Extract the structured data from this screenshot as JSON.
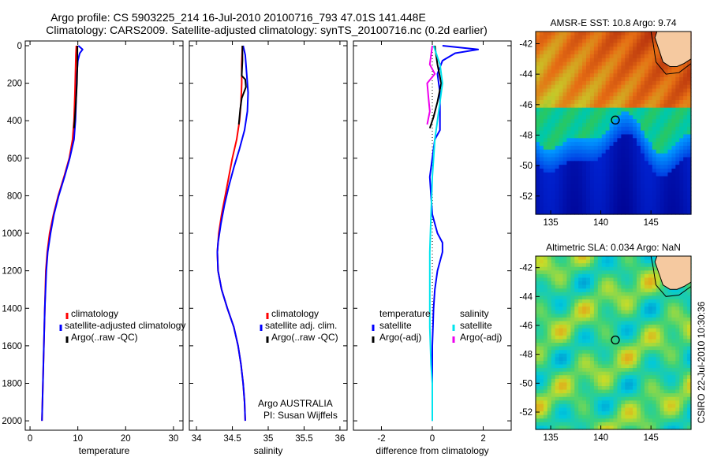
{
  "title": {
    "line1": "Argo profile: CS 5903225_214 16-Jul-2010 20100716_793 47.01S 141.448E",
    "line2": "Climatology: CARS2009. Satellite-adjusted climatology: synTS_20100716.nc (0.2d earlier)"
  },
  "depth_ticks": [
    "0",
    "200",
    "400",
    "600",
    "800",
    "1000",
    "1200",
    "1400",
    "1600",
    "1800",
    "2000"
  ],
  "colors": {
    "climatology": "#ff0000",
    "satellite": "#0000ff",
    "argo": "#000000",
    "salinity_satellite": "#00e5ee",
    "salinity_argo": "#ee00ee"
  },
  "chart_data": [
    {
      "type": "line",
      "xlabel": "temperature",
      "ylabel": "",
      "xlim": [
        -1,
        32
      ],
      "ylim": [
        2050,
        0
      ],
      "xticks": [
        "0",
        "10",
        "20",
        "30"
      ],
      "legend": {
        "position": "lower-right",
        "labels": [
          "climatology",
          "satellite-adjusted climatology",
          "Argo(..raw -QC)"
        ]
      },
      "series": [
        {
          "name": "climatology",
          "color": "#ff0000",
          "points": [
            [
              9.7,
              0
            ],
            [
              9.6,
              50
            ],
            [
              9.5,
              150
            ],
            [
              9.4,
              250
            ],
            [
              9.2,
              400
            ],
            [
              8.9,
              500
            ],
            [
              8.2,
              600
            ],
            [
              7.1,
              700
            ],
            [
              5.9,
              800
            ],
            [
              4.9,
              900
            ],
            [
              4.1,
              1000
            ],
            [
              3.6,
              1100
            ],
            [
              3.3,
              1200
            ],
            [
              3.1,
              1400
            ],
            [
              2.9,
              1600
            ],
            [
              2.7,
              1800
            ],
            [
              2.5,
              2000
            ]
          ]
        },
        {
          "name": "satellite-adjusted climatology",
          "color": "#0000ff",
          "points": [
            [
              10.1,
              0
            ],
            [
              11.0,
              20
            ],
            [
              10.4,
              40
            ],
            [
              10.0,
              80
            ],
            [
              9.8,
              150
            ],
            [
              9.7,
              250
            ],
            [
              9.5,
              400
            ],
            [
              9.2,
              500
            ],
            [
              8.3,
              600
            ],
            [
              7.2,
              700
            ],
            [
              6.0,
              800
            ],
            [
              5.0,
              900
            ],
            [
              4.3,
              1000
            ],
            [
              3.7,
              1100
            ],
            [
              3.4,
              1200
            ],
            [
              3.1,
              1400
            ],
            [
              2.9,
              1600
            ],
            [
              2.7,
              1800
            ],
            [
              2.5,
              2000
            ]
          ]
        },
        {
          "name": "Argo(..raw -QC)",
          "color": "#000000",
          "points": [
            [
              9.9,
              0
            ],
            [
              9.9,
              100
            ],
            [
              9.8,
              200
            ],
            [
              9.6,
              300
            ],
            [
              9.4,
              380
            ],
            [
              9.2,
              440
            ]
          ]
        }
      ]
    },
    {
      "type": "line",
      "xlabel": "salinity",
      "ylabel": "",
      "xlim": [
        33.9,
        36.1
      ],
      "ylim": [
        2050,
        0
      ],
      "xticks": [
        "34",
        "34.5",
        "35",
        "35.5",
        "36"
      ],
      "legend": {
        "position": "lower-right",
        "labels": [
          "climatology",
          "satellite adj. clim.",
          "Argo(..raw -QC)"
        ]
      },
      "series": [
        {
          "name": "climatology",
          "color": "#ff0000",
          "points": [
            [
              34.64,
              0
            ],
            [
              34.63,
              100
            ],
            [
              34.63,
              200
            ],
            [
              34.62,
              300
            ],
            [
              34.6,
              400
            ],
            [
              34.56,
              500
            ],
            [
              34.5,
              600
            ],
            [
              34.45,
              700
            ],
            [
              34.4,
              800
            ],
            [
              34.35,
              900
            ],
            [
              34.31,
              1000
            ],
            [
              34.29,
              1100
            ],
            [
              34.3,
              1200
            ],
            [
              34.35,
              1300
            ],
            [
              34.43,
              1400
            ],
            [
              34.52,
              1500
            ],
            [
              34.58,
              1600
            ],
            [
              34.62,
              1700
            ],
            [
              34.65,
              1800
            ],
            [
              34.67,
              1900
            ],
            [
              34.68,
              2000
            ]
          ]
        },
        {
          "name": "satellite adj. clim.",
          "color": "#0000ff",
          "points": [
            [
              34.65,
              0
            ],
            [
              34.68,
              50
            ],
            [
              34.7,
              150
            ],
            [
              34.72,
              250
            ],
            [
              34.71,
              350
            ],
            [
              34.67,
              450
            ],
            [
              34.6,
              550
            ],
            [
              34.52,
              650
            ],
            [
              34.45,
              750
            ],
            [
              34.39,
              850
            ],
            [
              34.34,
              950
            ],
            [
              34.3,
              1050
            ],
            [
              34.29,
              1100
            ],
            [
              34.3,
              1200
            ],
            [
              34.35,
              1300
            ],
            [
              34.43,
              1400
            ],
            [
              34.52,
              1500
            ],
            [
              34.58,
              1600
            ],
            [
              34.62,
              1700
            ],
            [
              34.65,
              1800
            ],
            [
              34.67,
              1900
            ],
            [
              34.68,
              2000
            ]
          ]
        },
        {
          "name": "Argo(..raw -QC)",
          "color": "#000000",
          "points": [
            [
              34.64,
              0
            ],
            [
              34.64,
              80
            ],
            [
              34.63,
              160
            ],
            [
              34.68,
              180
            ],
            [
              34.69,
              220
            ],
            [
              34.63,
              280
            ],
            [
              34.61,
              340
            ],
            [
              34.59,
              420
            ]
          ]
        }
      ]
    },
    {
      "type": "line",
      "xlabel": "difference from climatology",
      "ylabel": "",
      "xlim": [
        -3.1,
        3.1
      ],
      "ylim": [
        2050,
        0
      ],
      "xticks": [
        "-2",
        "0",
        "2"
      ],
      "legend": {
        "position": "lower-center",
        "headers": [
          "temperature",
          "salinity"
        ],
        "labels": [
          "satellite",
          "Argo(-adj)",
          "satellite",
          "Argo(-adj)"
        ]
      },
      "series": [
        {
          "name": "temperature satellite",
          "color": "#0000ff",
          "points": [
            [
              0.4,
              0
            ],
            [
              1.8,
              20
            ],
            [
              0.9,
              40
            ],
            [
              0.4,
              80
            ],
            [
              0.2,
              150
            ],
            [
              0.3,
              250
            ],
            [
              0.3,
              350
            ],
            [
              0.3,
              400
            ],
            [
              0.3,
              450
            ],
            [
              0.1,
              500
            ],
            [
              0.0,
              600
            ],
            [
              -0.1,
              700
            ],
            [
              -0.05,
              800
            ],
            [
              0.0,
              900
            ],
            [
              0.2,
              1000
            ],
            [
              0.4,
              1050
            ],
            [
              0.4,
              1100
            ],
            [
              0.2,
              1200
            ],
            [
              0.1,
              1300
            ],
            [
              0.05,
              1400
            ],
            [
              0.0,
              1600
            ],
            [
              0.0,
              1800
            ],
            [
              0.0,
              2000
            ]
          ]
        },
        {
          "name": "temperature Argo(-adj)",
          "color": "#000000",
          "points": [
            [
              0.1,
              0
            ],
            [
              0.2,
              100
            ],
            [
              0.35,
              200
            ],
            [
              0.2,
              300
            ],
            [
              0.05,
              380
            ],
            [
              -0.1,
              440
            ]
          ]
        },
        {
          "name": "salinity satellite",
          "color": "#00e5ee",
          "points": [
            [
              0.05,
              0
            ],
            [
              0.3,
              100
            ],
            [
              0.4,
              200
            ],
            [
              0.3,
              300
            ],
            [
              0.2,
              400
            ],
            [
              0.1,
              500
            ],
            [
              0.0,
              700
            ],
            [
              -0.05,
              900
            ],
            [
              -0.1,
              1100
            ],
            [
              -0.1,
              1300
            ],
            [
              -0.1,
              1500
            ],
            [
              -0.05,
              1700
            ],
            [
              0.0,
              1800
            ],
            [
              0.0,
              2000
            ]
          ]
        },
        {
          "name": "salinity Argo(-adj)",
          "color": "#ee00ee",
          "points": [
            [
              0.0,
              0
            ],
            [
              -0.1,
              100
            ],
            [
              0.1,
              150
            ],
            [
              -0.2,
              200
            ],
            [
              -0.15,
              280
            ],
            [
              -0.1,
              350
            ],
            [
              -0.2,
              420
            ]
          ]
        }
      ]
    },
    {
      "type": "heatmap",
      "title": "AMSR-E SST: 10.8 Argo: 9.74",
      "xlim": [
        133.5,
        149
      ],
      "ylim": [
        -53.2,
        -41.2
      ],
      "xticks": [
        "135",
        "140",
        "145"
      ],
      "yticks": [
        "-42",
        "-44",
        "-46",
        "-48",
        "-50",
        "-52"
      ],
      "marker": [
        141.45,
        -47.01
      ]
    },
    {
      "type": "heatmap",
      "title": "Altimetric SLA: 0.034 Argo: NaN",
      "xlim": [
        133.5,
        149
      ],
      "ylim": [
        -53.2,
        -41.2
      ],
      "xticks": [
        "135",
        "140",
        "145"
      ],
      "yticks": [
        "-42",
        "-44",
        "-46",
        "-48",
        "-50",
        "-52"
      ],
      "marker": [
        141.45,
        -47.01
      ]
    }
  ],
  "text": {
    "argo_australia": "Argo AUSTRALIA",
    "pi": "PI: Susan Wijffels",
    "stamp": "CSIRO 22-Jul-2010 10:30:36"
  }
}
